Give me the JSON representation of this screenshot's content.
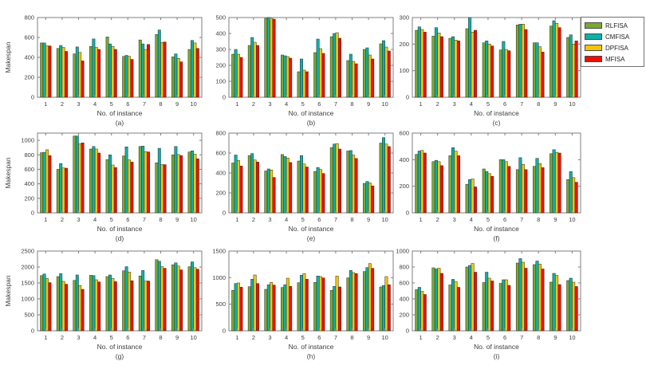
{
  "figure": {
    "background": "#ffffff",
    "axis_color": "#7f7f7f",
    "text_color": "#3d3d3d",
    "bar_edge_color": "#2b2b2b"
  },
  "legend": {
    "items": [
      {
        "label": "RLFISA",
        "color": "#77AB30"
      },
      {
        "label": "CMFISA",
        "color": "#0FAFAA"
      },
      {
        "label": "DPFISA",
        "color": "#F7C500"
      },
      {
        "label": "MFISA",
        "color": "#F20C00"
      }
    ]
  },
  "chart_data": [
    {
      "type": "bar",
      "title": "(a)",
      "xlabel": "No. of instance",
      "ylabel": "Makespan",
      "categories": [
        "1",
        "2",
        "3",
        "4",
        "5",
        "6",
        "7",
        "8",
        "9",
        "10"
      ],
      "ylim": [
        0,
        800
      ],
      "yticks": [
        0,
        200,
        400,
        600,
        800
      ],
      "series": [
        {
          "name": "RLFISA",
          "color": "#77AB30",
          "values": [
            545,
            490,
            435,
            510,
            605,
            410,
            575,
            630,
            405,
            480
          ]
        },
        {
          "name": "CMFISA",
          "color": "#0FAFAA",
          "values": [
            545,
            520,
            505,
            585,
            535,
            420,
            535,
            675,
            435,
            570
          ]
        },
        {
          "name": "DPFISA",
          "color": "#F7C500",
          "values": [
            515,
            500,
            450,
            500,
            510,
            410,
            480,
            550,
            390,
            545
          ]
        },
        {
          "name": "MFISA",
          "color": "#F20C00",
          "values": [
            515,
            460,
            365,
            480,
            480,
            380,
            530,
            555,
            355,
            490
          ]
        }
      ]
    },
    {
      "type": "bar",
      "title": "(b)",
      "xlabel": "No. of instance",
      "ylabel": "",
      "categories": [
        "1",
        "2",
        "3",
        "4",
        "5",
        "6",
        "7",
        "8",
        "9",
        "10"
      ],
      "ylim": [
        0,
        500
      ],
      "yticks": [
        0,
        100,
        200,
        300,
        400,
        500
      ],
      "series": [
        {
          "name": "RLFISA",
          "color": "#77AB30",
          "values": [
            270,
            325,
            495,
            265,
            160,
            280,
            380,
            230,
            300,
            335
          ]
        },
        {
          "name": "CMFISA",
          "color": "#0FAFAA",
          "values": [
            300,
            375,
            500,
            260,
            240,
            365,
            400,
            270,
            310,
            355
          ]
        },
        {
          "name": "DPFISA",
          "color": "#F7C500",
          "values": [
            270,
            345,
            495,
            255,
            170,
            305,
            405,
            225,
            265,
            315
          ]
        },
        {
          "name": "MFISA",
          "color": "#F20C00",
          "values": [
            250,
            325,
            490,
            245,
            160,
            275,
            370,
            210,
            240,
            290
          ]
        }
      ]
    },
    {
      "type": "bar",
      "title": "(c)",
      "xlabel": "No. of instance",
      "ylabel": "",
      "categories": [
        "1",
        "2",
        "3",
        "4",
        "5",
        "6",
        "7",
        "8",
        "9",
        "10"
      ],
      "ylim": [
        0,
        300
      ],
      "yticks": [
        0,
        100,
        200,
        300
      ],
      "series": [
        {
          "name": "RLFISA",
          "color": "#77AB30",
          "values": [
            252,
            230,
            222,
            258,
            205,
            178,
            272,
            205,
            268,
            225
          ]
        },
        {
          "name": "CMFISA",
          "color": "#0FAFAA",
          "values": [
            265,
            262,
            228,
            300,
            212,
            210,
            275,
            205,
            288,
            235
          ]
        },
        {
          "name": "DPFISA",
          "color": "#F7C500",
          "values": [
            255,
            242,
            215,
            245,
            200,
            180,
            275,
            190,
            278,
            200
          ]
        },
        {
          "name": "MFISA",
          "color": "#F20C00",
          "values": [
            245,
            228,
            212,
            252,
            193,
            175,
            255,
            170,
            262,
            212
          ]
        }
      ]
    },
    {
      "type": "bar",
      "title": "(d)",
      "xlabel": "No. of instance",
      "ylabel": "Makespan",
      "categories": [
        "1",
        "2",
        "3",
        "4",
        "5",
        "6",
        "7",
        "8",
        "9",
        "10"
      ],
      "ylim": [
        0,
        1100
      ],
      "yticks": [
        0,
        200,
        400,
        600,
        800,
        1000
      ],
      "series": [
        {
          "name": "RLFISA",
          "color": "#77AB30",
          "values": [
            830,
            600,
            1060,
            880,
            735,
            785,
            915,
            690,
            800,
            840
          ]
        },
        {
          "name": "CMFISA",
          "color": "#0FAFAA",
          "values": [
            835,
            680,
            1060,
            915,
            800,
            910,
            920,
            890,
            915,
            855
          ]
        },
        {
          "name": "DPFISA",
          "color": "#F7C500",
          "values": [
            870,
            620,
            950,
            880,
            660,
            730,
            845,
            665,
            805,
            810
          ]
        },
        {
          "name": "MFISA",
          "color": "#F20C00",
          "values": [
            790,
            615,
            965,
            825,
            625,
            700,
            840,
            665,
            790,
            745
          ]
        }
      ]
    },
    {
      "type": "bar",
      "title": "(e)",
      "xlabel": "No. of instance",
      "ylabel": "",
      "categories": [
        "1",
        "2",
        "3",
        "4",
        "5",
        "6",
        "7",
        "8",
        "9",
        "10"
      ],
      "ylim": [
        0,
        800
      ],
      "yticks": [
        0,
        200,
        400,
        600,
        800
      ],
      "series": [
        {
          "name": "RLFISA",
          "color": "#77AB30",
          "values": [
            500,
            575,
            420,
            585,
            520,
            415,
            655,
            620,
            295,
            700
          ]
        },
        {
          "name": "CMFISA",
          "color": "#0FAFAA",
          "values": [
            580,
            595,
            440,
            565,
            575,
            455,
            690,
            625,
            315,
            755
          ]
        },
        {
          "name": "DPFISA",
          "color": "#F7C500",
          "values": [
            525,
            530,
            430,
            550,
            490,
            435,
            695,
            580,
            300,
            690
          ]
        },
        {
          "name": "MFISA",
          "color": "#F20C00",
          "values": [
            470,
            510,
            355,
            505,
            460,
            395,
            640,
            545,
            270,
            665
          ]
        }
      ]
    },
    {
      "type": "bar",
      "title": "(f)",
      "xlabel": "No. of instance",
      "ylabel": "",
      "categories": [
        "1",
        "2",
        "3",
        "4",
        "5",
        "6",
        "7",
        "8",
        "9",
        "10"
      ],
      "ylim": [
        0,
        600
      ],
      "yticks": [
        0,
        200,
        400,
        600
      ],
      "series": [
        {
          "name": "RLFISA",
          "color": "#77AB30",
          "values": [
            440,
            385,
            430,
            215,
            330,
            400,
            325,
            350,
            445,
            250
          ]
        },
        {
          "name": "CMFISA",
          "color": "#0FAFAA",
          "values": [
            465,
            395,
            490,
            250,
            310,
            400,
            415,
            410,
            475,
            310
          ]
        },
        {
          "name": "DPFISA",
          "color": "#F7C500",
          "values": [
            470,
            385,
            465,
            255,
            295,
            385,
            365,
            370,
            455,
            265
          ]
        },
        {
          "name": "MFISA",
          "color": "#F20C00",
          "values": [
            450,
            355,
            430,
            195,
            275,
            350,
            325,
            340,
            450,
            230
          ]
        }
      ]
    },
    {
      "type": "bar",
      "title": "(g)",
      "xlabel": "No. of instance",
      "ylabel": "Makespan",
      "categories": [
        "1",
        "2",
        "3",
        "4",
        "5",
        "6",
        "7",
        "8",
        "9",
        "10"
      ],
      "ylim": [
        0,
        2500
      ],
      "yticks": [
        0,
        500,
        1000,
        1500,
        2000,
        2500
      ],
      "series": [
        {
          "name": "RLFISA",
          "color": "#77AB30",
          "values": [
            1730,
            1700,
            1580,
            1740,
            1700,
            1880,
            1720,
            2230,
            2070,
            2010
          ]
        },
        {
          "name": "CMFISA",
          "color": "#0FAFAA",
          "values": [
            1780,
            1790,
            1750,
            1730,
            1750,
            2010,
            1890,
            2180,
            2130,
            2160
          ]
        },
        {
          "name": "DPFISA",
          "color": "#F7C500",
          "values": [
            1640,
            1550,
            1420,
            1600,
            1640,
            1840,
            1560,
            2010,
            2030,
            1980
          ]
        },
        {
          "name": "MFISA",
          "color": "#F20C00",
          "values": [
            1510,
            1460,
            1300,
            1530,
            1540,
            1570,
            1560,
            1960,
            1910,
            1930
          ]
        }
      ]
    },
    {
      "type": "bar",
      "title": "(h)",
      "xlabel": "No. of instance",
      "ylabel": "",
      "categories": [
        "1",
        "2",
        "3",
        "4",
        "5",
        "6",
        "7",
        "8",
        "9",
        "10"
      ],
      "ylim": [
        0,
        1500
      ],
      "yticks": [
        0,
        500,
        1000,
        1500
      ],
      "series": [
        {
          "name": "RLFISA",
          "color": "#77AB30",
          "values": [
            760,
            830,
            780,
            815,
            905,
            910,
            760,
            995,
            1115,
            825
          ]
        },
        {
          "name": "CMFISA",
          "color": "#0FAFAA",
          "values": [
            890,
            970,
            865,
            865,
            1045,
            1030,
            835,
            1135,
            1190,
            850
          ]
        },
        {
          "name": "DPFISA",
          "color": "#F7C500",
          "values": [
            900,
            1050,
            910,
            990,
            1075,
            1020,
            1030,
            1095,
            1265,
            1020
          ]
        },
        {
          "name": "MFISA",
          "color": "#F20C00",
          "values": [
            820,
            890,
            860,
            835,
            970,
            995,
            825,
            1075,
            1175,
            865
          ]
        }
      ]
    },
    {
      "type": "bar",
      "title": "(i)",
      "xlabel": "No. of instance",
      "ylabel": "",
      "categories": [
        "1",
        "2",
        "3",
        "4",
        "5",
        "6",
        "7",
        "8",
        "9",
        "10"
      ],
      "ylim": [
        0,
        1000
      ],
      "yticks": [
        0,
        200,
        400,
        600,
        800,
        1000
      ],
      "series": [
        {
          "name": "RLFISA",
          "color": "#77AB30",
          "values": [
            515,
            790,
            575,
            800,
            605,
            595,
            850,
            830,
            610,
            630
          ]
        },
        {
          "name": "CMFISA",
          "color": "#0FAFAA",
          "values": [
            545,
            775,
            645,
            820,
            735,
            640,
            905,
            875,
            720,
            660
          ]
        },
        {
          "name": "DPFISA",
          "color": "#F7C500",
          "values": [
            495,
            785,
            615,
            845,
            660,
            640,
            860,
            835,
            695,
            610
          ]
        },
        {
          "name": "MFISA",
          "color": "#F20C00",
          "values": [
            455,
            720,
            545,
            735,
            625,
            570,
            785,
            775,
            580,
            555
          ]
        }
      ]
    }
  ]
}
